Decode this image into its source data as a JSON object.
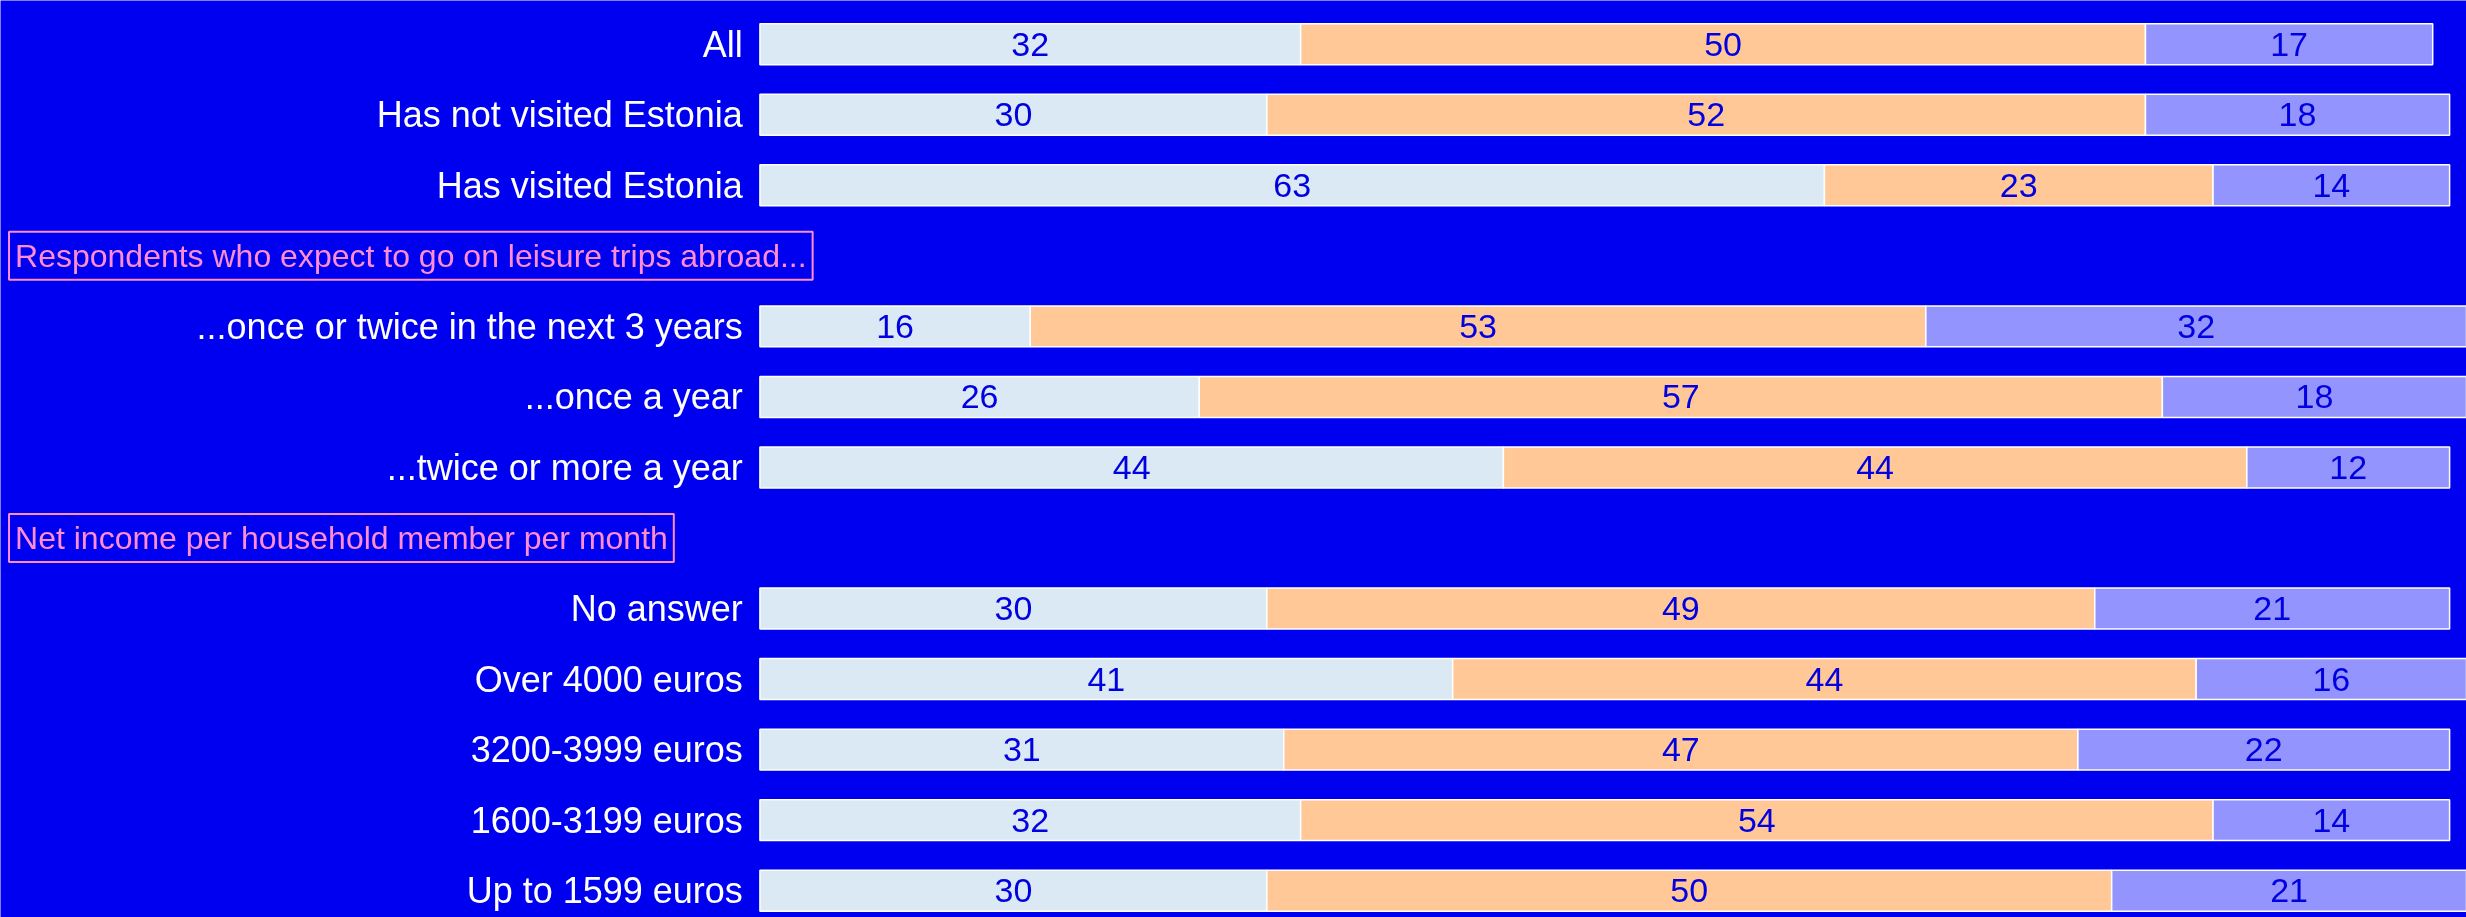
{
  "chart_data": {
    "type": "bar",
    "orientation": "horizontal",
    "stacked": true,
    "data_labels": true,
    "tick_labels": "y",
    "annotations": [
      "Respondents who expect to go on leisure trips abroad...",
      "Net income per household member per month"
    ],
    "categories": [
      "All",
      "Has not visited Estonia",
      "Has visited Estonia",
      null,
      "...once or twice in the next 3 years",
      "...once a year",
      "...twice or more a year",
      null,
      "No answer",
      "Over 4000 euros",
      "3200-3999 euros",
      "1600-3199 euros",
      "Up to 1599 euros"
    ],
    "series": [
      {
        "color": "#dae9f3",
        "values": [
          32,
          30,
          63,
          null,
          16,
          26,
          44,
          null,
          30,
          41,
          31,
          32,
          30
        ]
      },
      {
        "color": "#ffc896",
        "values": [
          50,
          52,
          23,
          null,
          53,
          57,
          44,
          null,
          49,
          44,
          47,
          54,
          50
        ]
      },
      {
        "color": "#9494ff",
        "values": [
          17,
          18,
          14,
          null,
          32,
          18,
          12,
          null,
          21,
          16,
          22,
          14,
          21
        ]
      }
    ]
  }
}
